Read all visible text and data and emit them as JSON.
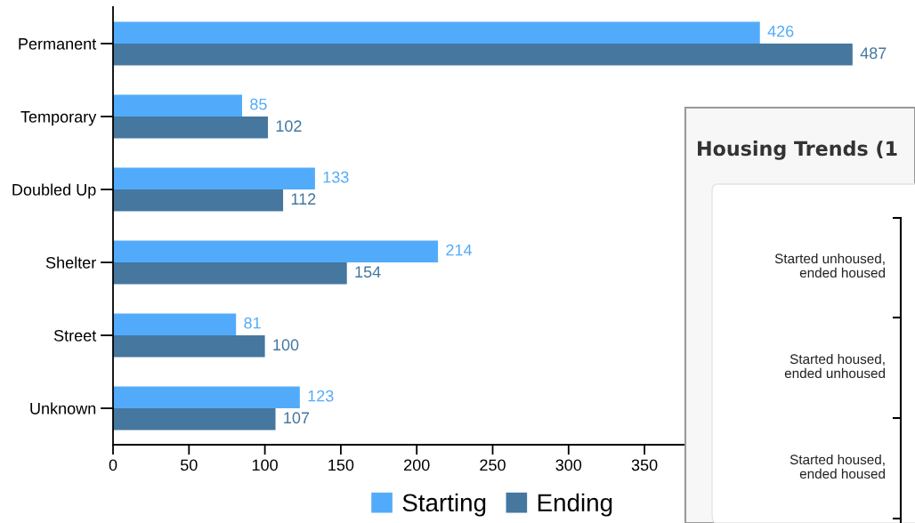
{
  "chart_data": [
    {
      "type": "bar",
      "orientation": "horizontal",
      "categories": [
        "Permanent",
        "Temporary",
        "Doubled Up",
        "Shelter",
        "Street",
        "Unknown"
      ],
      "series": [
        {
          "name": "Starting",
          "color": "#52abfa",
          "values": [
            426,
            85,
            133,
            214,
            81,
            123
          ]
        },
        {
          "name": "Ending",
          "color": "#45779f",
          "values": [
            487,
            102,
            112,
            154,
            100,
            107
          ]
        }
      ],
      "xlim": [
        0,
        500
      ],
      "xticks": [
        0,
        50,
        100,
        150,
        200,
        250,
        300,
        350
      ],
      "data_labels": true,
      "legend": "bottom",
      "grid": false
    },
    {
      "type": "other",
      "title": "Housing Trends (1",
      "annotations": [
        "Started unhoused,\nended housed",
        "Started housed,\nended unhoused",
        "Started housed,\nended housed"
      ]
    }
  ]
}
